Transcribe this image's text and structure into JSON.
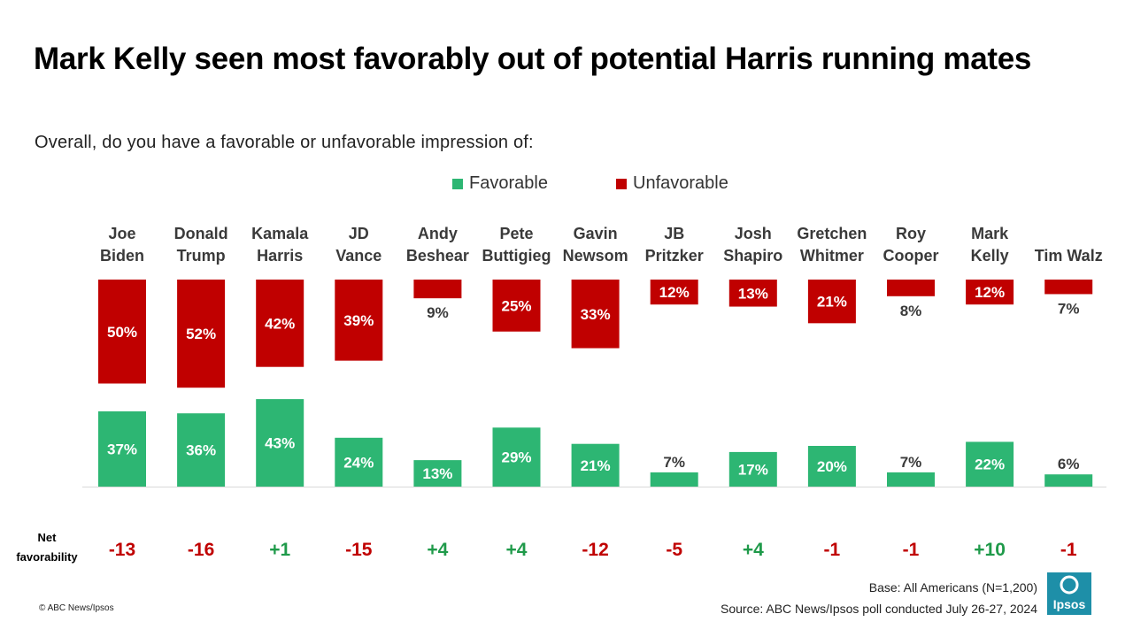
{
  "title": "Mark Kelly seen most favorably out of potential Harris running mates",
  "subtitle": "Overall, do you have a favorable or unfavorable impression of:",
  "legend": {
    "favorable": "Favorable",
    "unfavorable": "Unfavorable"
  },
  "colors": {
    "favorable": "#2db673",
    "unfavorable": "#c00000",
    "positive_net": "#1f9a4a",
    "negative_net": "#c00000",
    "logo": "#1e8fa8"
  },
  "net_label": [
    "Net",
    "favorability"
  ],
  "footer": {
    "base": "Base: All Americans (N=1,200)",
    "source": "Source: ABC News/Ipsos poll conducted July 26-27, 2024",
    "copyright": "© ABC News/Ipsos",
    "logo_text": "Ipsos"
  },
  "chart_data": {
    "type": "bar",
    "title": "Mark Kelly seen most favorably out of potential Harris running mates",
    "subtitle": "Overall, do you have a favorable or unfavorable impression of:",
    "categories": [
      [
        "Joe",
        "Biden"
      ],
      [
        "Donald",
        "Trump"
      ],
      [
        "Kamala",
        "Harris"
      ],
      [
        "JD",
        "Vance"
      ],
      [
        "Andy",
        "Beshear"
      ],
      [
        "Pete",
        "Buttigieg"
      ],
      [
        "Gavin",
        "Newsom"
      ],
      [
        "JB",
        "Pritzker"
      ],
      [
        "Josh",
        "Shapiro"
      ],
      [
        "Gretchen",
        "Whitmer"
      ],
      [
        "Roy",
        "Cooper"
      ],
      [
        "Mark",
        "Kelly"
      ],
      [
        "Tim Walz"
      ]
    ],
    "series": [
      {
        "name": "Favorable",
        "values": [
          37,
          36,
          43,
          24,
          13,
          29,
          21,
          7,
          17,
          20,
          7,
          22,
          6
        ],
        "labels": [
          "37%",
          "36%",
          "43%",
          "24%",
          "13%",
          "29%",
          "21%",
          "7%",
          "17%",
          "20%",
          "7%",
          "22%",
          "6%"
        ]
      },
      {
        "name": "Unfavorable",
        "values": [
          50,
          52,
          42,
          39,
          9,
          25,
          33,
          12,
          13,
          21,
          8,
          12,
          7
        ],
        "labels": [
          "50%",
          "52%",
          "42%",
          "39%",
          "9%",
          "25%",
          "33%",
          "12%",
          "13%",
          "21%",
          "8%",
          "12%",
          "7%"
        ]
      }
    ],
    "net_favorability": [
      "-13",
      "-16",
      "+1",
      "-15",
      "+4",
      "+4",
      "-12",
      "-5",
      "+4",
      "-1",
      "-1",
      "+10",
      "-1"
    ],
    "unit": "%"
  }
}
